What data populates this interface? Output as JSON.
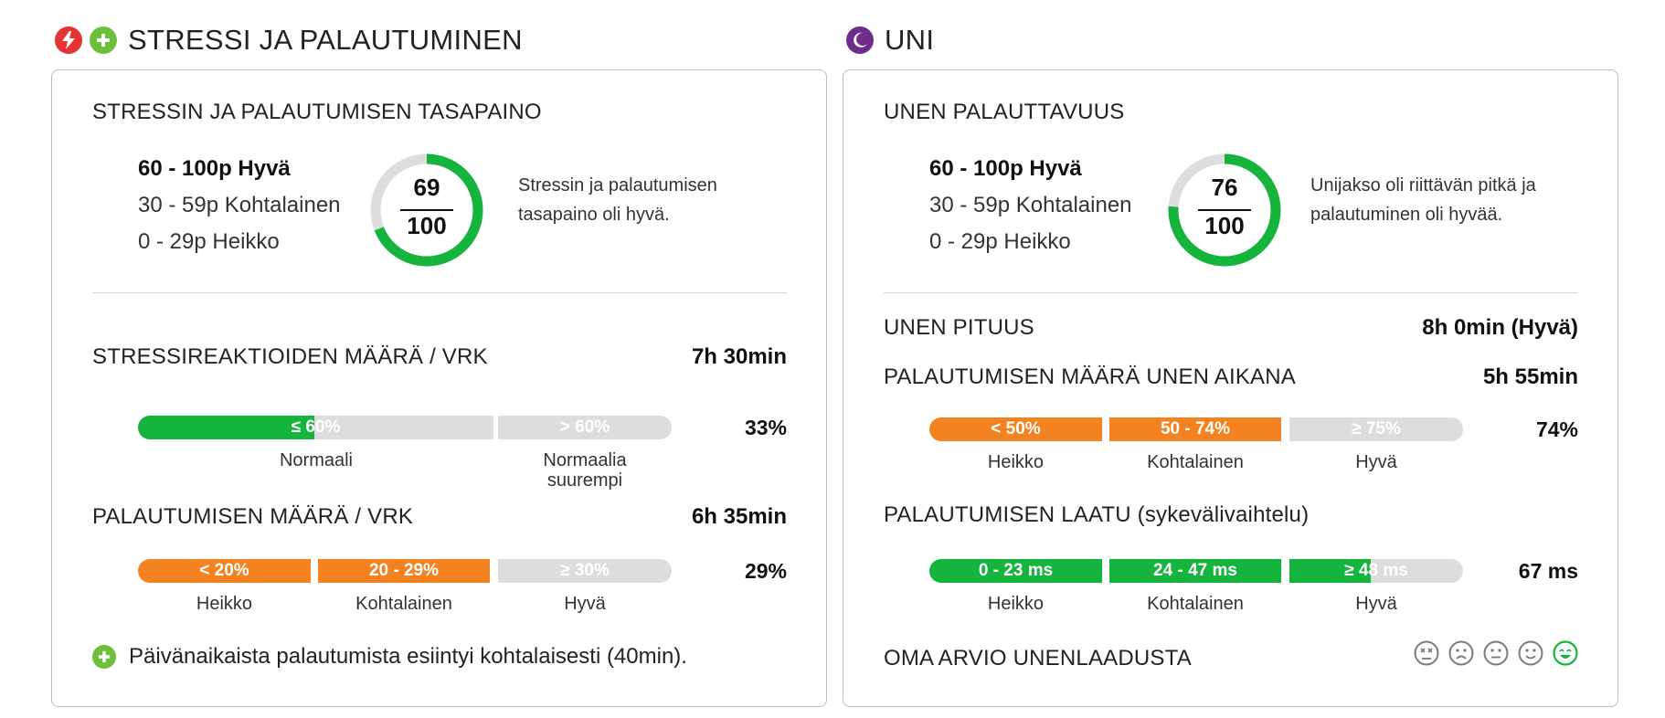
{
  "stress": {
    "title": "STRESSI JA PALAUTUMINEN",
    "balance_heading": "STRESSIN JA PALAUTUMISEN TASAPAINO",
    "legend": [
      "60 - 100p Hyvä",
      "30 - 59p Kohtalainen",
      "0 - 29p Heikko"
    ],
    "score": "69",
    "score_max": "100",
    "score_fraction": 0.69,
    "description": "Stressin ja palautumisen tasapaino oli hyvä.",
    "reactions": {
      "heading": "STRESSIREAKTIOIDEN MÄÄRÄ / VRK",
      "value": "7h 30min",
      "percent": "33%",
      "fill_fraction": 0.33,
      "bar_labels": [
        "≤ 60%",
        "> 60%"
      ],
      "captions": [
        "Normaali",
        "Normaalia suurempi"
      ]
    },
    "recovery": {
      "heading": "PALAUTUMISEN MÄÄRÄ / VRK",
      "value": "6h 35min",
      "percent": "29%",
      "bar_labels": [
        "< 20%",
        "20 - 29%",
        "≥ 30%"
      ],
      "captions": [
        "Heikko",
        "Kohtalainen",
        "Hyvä"
      ]
    },
    "note": "Päivänaikaista palautumista esiintyi kohtalaisesti (40min)."
  },
  "sleep": {
    "title": "UNI",
    "restorative_heading": "UNEN PALAUTTAVUUS",
    "legend": [
      "60 - 100p Hyvä",
      "30 - 59p Kohtalainen",
      "0 - 29p Heikko"
    ],
    "score": "76",
    "score_max": "100",
    "score_fraction": 0.76,
    "description": "Unijakso oli riittävän pitkä ja palautuminen oli hyvää.",
    "length": {
      "heading": "UNEN PITUUS",
      "value": "8h 0min (Hyvä)"
    },
    "recovery_amount": {
      "heading": "PALAUTUMISEN MÄÄRÄ UNEN AIKANA",
      "value": "5h 55min",
      "percent": "74%",
      "bar_labels": [
        "< 50%",
        "50 - 74%",
        "≥ 75%"
      ],
      "captions": [
        "Heikko",
        "Kohtalainen",
        "Hyvä"
      ]
    },
    "recovery_quality": {
      "heading": "PALAUTUMISEN LAATU (sykevälivaihtelu)",
      "value": "67 ms",
      "bar_labels": [
        "0 - 23 ms",
        "24 - 47 ms",
        "≥ 48 ms"
      ],
      "captions": [
        "Heikko",
        "Kohtalainen",
        "Hyvä"
      ],
      "last_segment_fill": 0.47
    },
    "self_rating_heading": "OMA ARVIO UNENLAADUSTA",
    "self_rating_selected": 5
  },
  "colors": {
    "green": "#15b43d",
    "orange": "#f58220",
    "grey": "#dddddd",
    "stress_icon": "#e63232",
    "recovery_icon": "#6cbf3a",
    "sleep_icon": "#6e2d8a"
  },
  "icons": [
    "lightning-icon",
    "plus-icon",
    "moon-icon"
  ]
}
